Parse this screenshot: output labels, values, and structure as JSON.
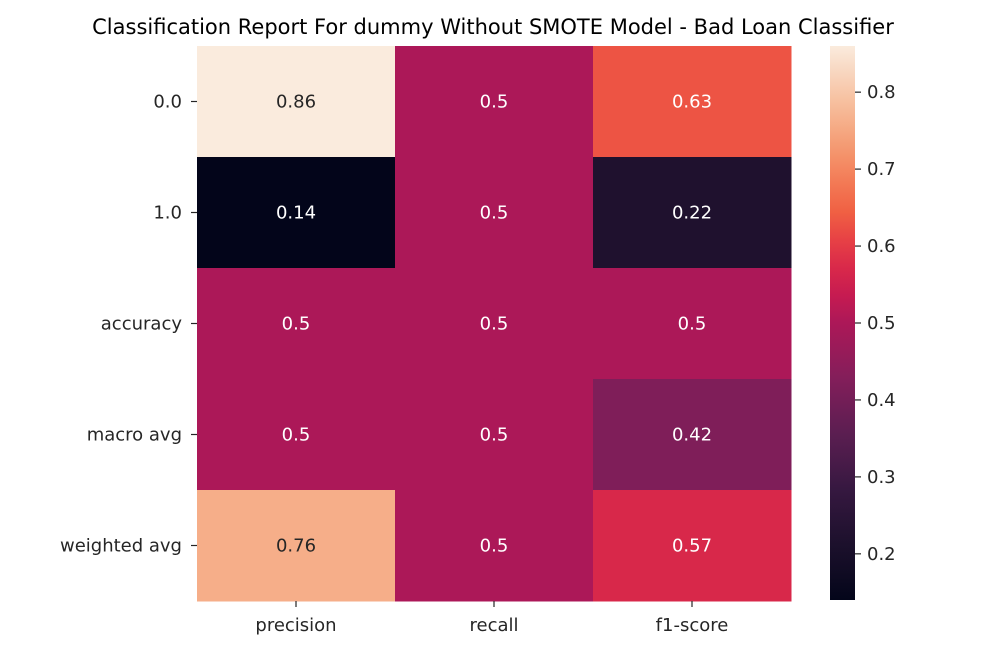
{
  "chart_data": {
    "type": "heatmap",
    "title": "Classification Report For dummy Without SMOTE Model - Bad Loan Classifier",
    "xlabel": "",
    "ylabel": "",
    "columns": [
      "precision",
      "recall",
      "f1-score"
    ],
    "rows": [
      "0.0",
      "1.0",
      "accuracy",
      "macro avg",
      "weighted avg"
    ],
    "values": [
      [
        0.86,
        0.5,
        0.63
      ],
      [
        0.14,
        0.5,
        0.22
      ],
      [
        0.5,
        0.5,
        0.5
      ],
      [
        0.5,
        0.5,
        0.42
      ],
      [
        0.76,
        0.5,
        0.57
      ]
    ],
    "annotations": [
      [
        "0.86",
        "0.5",
        "0.63"
      ],
      [
        "0.14",
        "0.5",
        "0.22"
      ],
      [
        "0.5",
        "0.5",
        "0.5"
      ],
      [
        "0.5",
        "0.5",
        "0.42"
      ],
      [
        "0.76",
        "0.5",
        "0.57"
      ]
    ],
    "colormap": "rocket",
    "vmin": 0.14,
    "vmax": 0.86,
    "colorbar_ticks": [
      0.2,
      0.3,
      0.4,
      0.5,
      0.6,
      0.7,
      0.8
    ],
    "colorbar_tick_labels": [
      "0.2",
      "0.3",
      "0.4",
      "0.5",
      "0.6",
      "0.7",
      "0.8"
    ],
    "colorbar_position": "right"
  }
}
